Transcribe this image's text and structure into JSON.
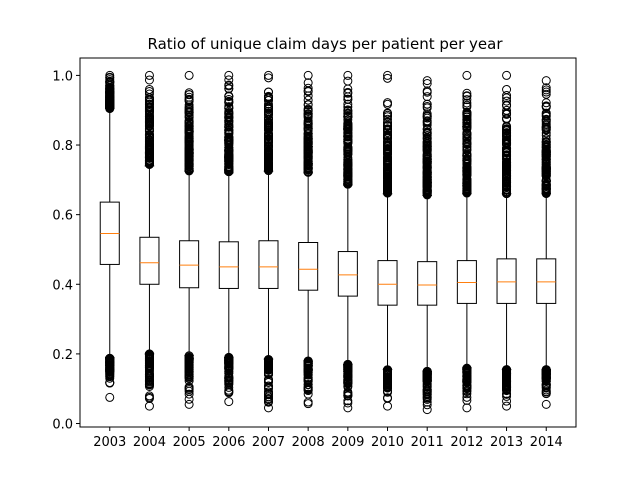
{
  "chart_data": {
    "type": "boxplot",
    "title": "Ratio of unique claim days per patient per year",
    "xlabel": "",
    "ylabel": "",
    "ylim": [
      -0.01,
      1.05
    ],
    "yticks": [
      "0.0",
      "0.2",
      "0.4",
      "0.6",
      "0.8",
      "1.0"
    ],
    "grid": false,
    "colors": {
      "box": "#000000",
      "median": "#ff7f0e",
      "flier": "#000000"
    },
    "categories": [
      "2003",
      "2004",
      "2005",
      "2006",
      "2007",
      "2008",
      "2009",
      "2010",
      "2011",
      "2012",
      "2013",
      "2014"
    ],
    "boxes": [
      {
        "label": "2003",
        "whislo": 0.19,
        "q1": 0.457,
        "med": 0.546,
        "q3": 0.636,
        "whishi": 0.905,
        "flier_low_min": 0.075,
        "flier_high_max": 1.0
      },
      {
        "label": "2004",
        "whislo": 0.2,
        "q1": 0.4,
        "med": 0.462,
        "q3": 0.535,
        "whishi": 0.74,
        "flier_low_min": 0.05,
        "flier_high_max": 1.0
      },
      {
        "label": "2005",
        "whislo": 0.195,
        "q1": 0.39,
        "med": 0.455,
        "q3": 0.525,
        "whishi": 0.725,
        "flier_low_min": 0.055,
        "flier_high_max": 1.0
      },
      {
        "label": "2006",
        "whislo": 0.19,
        "q1": 0.388,
        "med": 0.45,
        "q3": 0.522,
        "whishi": 0.72,
        "flier_low_min": 0.063,
        "flier_high_max": 1.0
      },
      {
        "label": "2007",
        "whislo": 0.185,
        "q1": 0.388,
        "med": 0.45,
        "q3": 0.525,
        "whishi": 0.725,
        "flier_low_min": 0.045,
        "flier_high_max": 1.0
      },
      {
        "label": "2008",
        "whislo": 0.18,
        "q1": 0.383,
        "med": 0.443,
        "q3": 0.52,
        "whishi": 0.72,
        "flier_low_min": 0.057,
        "flier_high_max": 1.0
      },
      {
        "label": "2009",
        "whislo": 0.17,
        "q1": 0.366,
        "med": 0.427,
        "q3": 0.494,
        "whishi": 0.685,
        "flier_low_min": 0.045,
        "flier_high_max": 1.0
      },
      {
        "label": "2010",
        "whislo": 0.155,
        "q1": 0.34,
        "med": 0.4,
        "q3": 0.468,
        "whishi": 0.66,
        "flier_low_min": 0.05,
        "flier_high_max": 1.0
      },
      {
        "label": "2011",
        "whislo": 0.15,
        "q1": 0.34,
        "med": 0.398,
        "q3": 0.465,
        "whishi": 0.655,
        "flier_low_min": 0.04,
        "flier_high_max": 0.985
      },
      {
        "label": "2012",
        "whislo": 0.16,
        "q1": 0.345,
        "med": 0.405,
        "q3": 0.468,
        "whishi": 0.66,
        "flier_low_min": 0.045,
        "flier_high_max": 1.0
      },
      {
        "label": "2013",
        "whislo": 0.155,
        "q1": 0.345,
        "med": 0.407,
        "q3": 0.473,
        "whishi": 0.66,
        "flier_low_min": 0.05,
        "flier_high_max": 1.0
      },
      {
        "label": "2014",
        "whislo": 0.155,
        "q1": 0.345,
        "med": 0.407,
        "q3": 0.473,
        "whishi": 0.66,
        "flier_low_min": 0.055,
        "flier_high_max": 0.985
      }
    ]
  }
}
